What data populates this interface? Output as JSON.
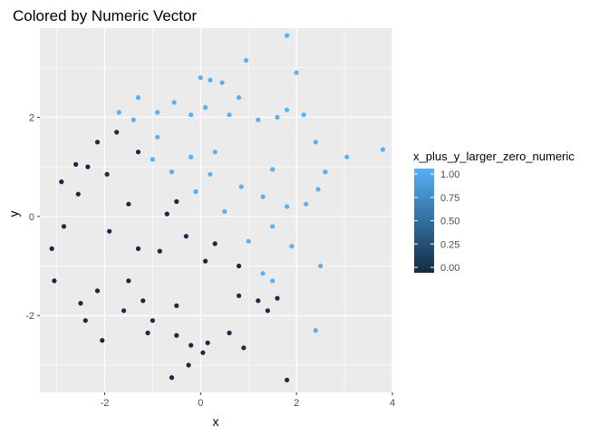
{
  "chart_data": {
    "type": "scatter",
    "title": "Colored by Numeric Vector",
    "xlabel": "x",
    "ylabel": "y",
    "xlim": [
      -3.35,
      4.0
    ],
    "ylim": [
      -3.55,
      3.8
    ],
    "x_ticks": [
      -2,
      0,
      2,
      4
    ],
    "y_ticks": [
      -2,
      0,
      2
    ],
    "grid": true,
    "legend": {
      "title": "x_plus_y_larger_zero_numeric",
      "position": "right",
      "type": "colorbar",
      "breaks": [
        "0.00",
        "0.25",
        "0.50",
        "0.75",
        "1.00"
      ],
      "break_values": [
        0,
        0.25,
        0.5,
        0.75,
        1
      ]
    },
    "colors": {
      "low": "#132B43",
      "high": "#56B1F7",
      "panel": "#EBEBEB",
      "grid_major": "#FFFFFF"
    },
    "color_rule": "value = 1 if x + y > 0 else 0",
    "points_shown": [
      [
        1.8,
        3.65
      ],
      [
        0.95,
        3.15
      ],
      [
        2.0,
        2.9
      ],
      [
        0.0,
        2.8
      ],
      [
        0.2,
        2.75
      ],
      [
        0.45,
        2.7
      ],
      [
        -1.3,
        2.4
      ],
      [
        -0.55,
        2.3
      ],
      [
        0.8,
        2.4
      ],
      [
        1.8,
        2.15
      ],
      [
        2.15,
        2.05
      ],
      [
        2.4,
        1.5
      ],
      [
        3.05,
        1.2
      ],
      [
        3.8,
        1.35
      ],
      [
        -1.7,
        2.1
      ],
      [
        -1.4,
        1.95
      ],
      [
        -0.9,
        2.1
      ],
      [
        -0.2,
        2.05
      ],
      [
        0.1,
        2.2
      ],
      [
        0.6,
        2.05
      ],
      [
        1.2,
        1.95
      ],
      [
        1.6,
        2.0
      ],
      [
        2.6,
        0.9
      ],
      [
        2.45,
        0.55
      ],
      [
        2.2,
        0.25
      ],
      [
        2.5,
        -1.0
      ],
      [
        2.4,
        -2.3
      ],
      [
        -2.6,
        1.05
      ],
      [
        -2.15,
        1.5
      ],
      [
        -1.75,
        1.7
      ],
      [
        -1.3,
        1.3
      ],
      [
        -1.0,
        1.15
      ],
      [
        -2.35,
        1.0
      ],
      [
        -1.95,
        0.85
      ],
      [
        -2.9,
        0.7
      ],
      [
        -2.55,
        0.45
      ],
      [
        -3.1,
        -0.65
      ],
      [
        -3.05,
        -1.3
      ],
      [
        -2.85,
        -0.2
      ],
      [
        -2.5,
        -1.75
      ],
      [
        -2.15,
        -1.5
      ],
      [
        -2.05,
        -2.5
      ],
      [
        -2.4,
        -2.1
      ],
      [
        -1.5,
        -1.3
      ],
      [
        -1.2,
        -1.7
      ],
      [
        -1.0,
        -2.1
      ],
      [
        -0.5,
        -2.4
      ],
      [
        -0.2,
        -2.6
      ],
      [
        0.05,
        -2.75
      ],
      [
        -0.25,
        -3.0
      ],
      [
        -0.6,
        -3.25
      ],
      [
        0.15,
        -2.55
      ],
      [
        0.6,
        -2.35
      ],
      [
        0.9,
        -2.65
      ],
      [
        1.4,
        -1.9
      ],
      [
        1.6,
        -1.65
      ],
      [
        1.8,
        -3.3
      ],
      [
        1.2,
        -1.7
      ],
      [
        1.5,
        -1.3
      ],
      [
        0.8,
        -1.6
      ],
      [
        -0.5,
        -1.8
      ],
      [
        -1.1,
        -2.35
      ],
      [
        -1.6,
        -1.9
      ],
      [
        -0.85,
        -0.7
      ],
      [
        -0.3,
        -0.4
      ],
      [
        0.1,
        -0.9
      ],
      [
        0.3,
        -0.55
      ],
      [
        0.8,
        -1.0
      ],
      [
        1.3,
        -1.15
      ],
      [
        1.0,
        -0.5
      ],
      [
        0.5,
        0.1
      ],
      [
        0.85,
        0.6
      ],
      [
        1.3,
        0.4
      ],
      [
        1.8,
        0.2
      ],
      [
        1.5,
        0.95
      ],
      [
        0.3,
        1.3
      ],
      [
        -0.2,
        1.2
      ],
      [
        -0.6,
        0.9
      ],
      [
        -0.9,
        1.6
      ],
      [
        -0.1,
        0.5
      ],
      [
        0.2,
        0.85
      ],
      [
        1.9,
        -0.6
      ],
      [
        1.5,
        -0.2
      ],
      [
        -1.5,
        0.25
      ],
      [
        -1.9,
        -0.3
      ],
      [
        -1.3,
        -0.65
      ],
      [
        -0.7,
        0.05
      ],
      [
        -0.5,
        0.3
      ]
    ]
  }
}
